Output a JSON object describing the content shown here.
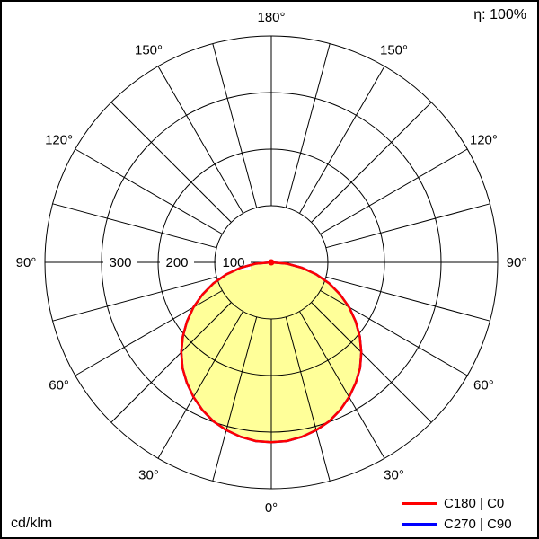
{
  "header": {
    "efficiency": "η: 100%"
  },
  "footer": {
    "unit": "cd/klm"
  },
  "legend": [
    {
      "label": "C180 | C0",
      "color": "#ff0000"
    },
    {
      "label": "C270 | C90",
      "color": "#0000ff"
    }
  ],
  "chart_data": {
    "type": "polar",
    "unit": "cd/klm",
    "efficiency_percent": 100,
    "angle_ticks": [
      {
        "deg": 0,
        "label": "0°"
      },
      {
        "deg": 30,
        "label": "30°"
      },
      {
        "deg": 60,
        "label": "60°"
      },
      {
        "deg": 90,
        "label": "90°"
      },
      {
        "deg": 120,
        "label": "120°"
      },
      {
        "deg": 150,
        "label": "150°"
      },
      {
        "deg": 180,
        "label": "180°"
      }
    ],
    "spoke_step_deg": 15,
    "radial_ticks": [
      {
        "value": 100,
        "label": "100"
      },
      {
        "value": 200,
        "label": "200"
      },
      {
        "value": 300,
        "label": "300"
      }
    ],
    "radial_max": 400,
    "symmetry": "left-right mirrored about vertical axis, 0° at nadir (bottom)",
    "series": [
      {
        "name": "C180 | C0",
        "color": "#ff0000",
        "fill": "#ffff99",
        "gamma_deg": [
          0,
          5,
          10,
          15,
          20,
          25,
          30,
          35,
          40,
          45,
          50,
          55,
          60,
          65,
          70,
          75,
          80,
          85,
          90
        ],
        "intensity_cdklm": [
          318,
          317,
          313,
          307,
          299,
          288,
          275,
          260,
          244,
          225,
          204,
          182,
          159,
          134,
          109,
          82,
          55,
          28,
          0
        ]
      },
      {
        "name": "C270 | C90",
        "color": "#0000ff",
        "fill": "none",
        "gamma_deg": [
          0,
          5,
          10,
          15,
          20,
          25,
          30,
          35,
          40,
          45,
          50,
          55,
          60,
          65,
          70,
          75,
          80,
          85,
          90
        ],
        "intensity_cdklm": [
          318,
          317,
          313,
          307,
          299,
          288,
          275,
          260,
          244,
          225,
          204,
          182,
          159,
          134,
          109,
          82,
          55,
          28,
          0
        ]
      }
    ]
  }
}
